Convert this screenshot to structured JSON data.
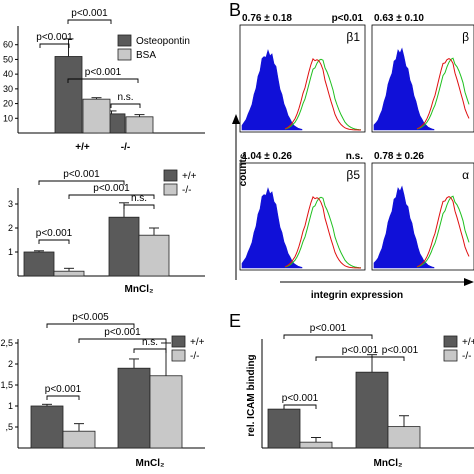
{
  "colors": {
    "dark": "#5a5a5a",
    "light": "#c8c8c8",
    "fill_blue": "#1010d8",
    "line_red": "#e01010",
    "line_green": "#20c020"
  },
  "panel_letters": {
    "B": "B",
    "E": "E"
  },
  "chart_data": [
    {
      "id": "top-left",
      "type": "bar",
      "categories": [
        "+/+",
        "-/-"
      ],
      "series": [
        {
          "name": "Osteopontin",
          "values": [
            52,
            13
          ],
          "errors": [
            12,
            2
          ]
        },
        {
          "name": "BSA",
          "values": [
            23,
            11
          ],
          "errors": [
            1,
            1.5
          ]
        }
      ],
      "ylim": [
        0,
        70
      ],
      "yticks": [
        10,
        20,
        30,
        40,
        50,
        60
      ],
      "ytick_labels": [
        "10",
        "20",
        "30",
        "40",
        "50",
        "60"
      ],
      "xlabel": "",
      "ylabel": "",
      "legend": "top-right",
      "annotations": [
        {
          "text": "p<0.001",
          "from": "+/+ Osteopontin",
          "to": "-/- Osteopontin"
        },
        {
          "text": "p<0.001",
          "from": "+/+ Osteopontin",
          "to": "+/+ BSA"
        },
        {
          "text": "p<0.001",
          "from": "+/+ BSA",
          "to": "-/- BSA"
        },
        {
          "text": "n.s.",
          "from": "-/- Osteopontin",
          "to": "-/- BSA"
        }
      ]
    },
    {
      "id": "middle-left",
      "type": "bar",
      "categories": [
        "",
        "MnCl2"
      ],
      "category_labels": [
        "",
        "MnCl₂"
      ],
      "series": [
        {
          "name": "+/+",
          "values": [
            1.0,
            2.45
          ],
          "errors": [
            0.05,
            0.6
          ]
        },
        {
          "name": "-/-",
          "values": [
            0.2,
            1.7
          ],
          "errors": [
            0.12,
            0.3
          ]
        }
      ],
      "ylim": [
        0,
        3.5
      ],
      "yticks": [
        1,
        2,
        3
      ],
      "ytick_labels": [
        "1",
        "2",
        "3"
      ],
      "xlabel": "",
      "ylabel": "",
      "legend": "top-right",
      "annotations": [
        {
          "text": "p<0.001",
          "from": "ctrl +/+",
          "to": "MnCl2 +/+"
        },
        {
          "text": "p<0.001",
          "from": "ctrl -/-",
          "to": "MnCl2 -/-"
        },
        {
          "text": "n.s.",
          "from": "MnCl2 +/+",
          "to": "MnCl2 -/-"
        },
        {
          "text": "p<0.001",
          "from": "ctrl +/+",
          "to": "ctrl -/-"
        }
      ]
    },
    {
      "id": "bottom-left",
      "type": "bar",
      "categories": [
        "",
        "MnCl2"
      ],
      "category_labels": [
        "",
        "MnCl₂"
      ],
      "series": [
        {
          "name": "+/+",
          "values": [
            1.0,
            1.9
          ],
          "errors": [
            0.04,
            0.22
          ]
        },
        {
          "name": "-/-",
          "values": [
            0.4,
            1.72
          ],
          "errors": [
            0.18,
            0.78
          ]
        }
      ],
      "ylim": [
        0,
        2.5
      ],
      "yticks": [
        0.5,
        1,
        1.5,
        2,
        2.5
      ],
      "ytick_labels": [
        ",5",
        "1",
        "1,5",
        "2",
        "2,5"
      ],
      "xlabel": "",
      "ylabel": "",
      "legend": "top-right",
      "annotations": [
        {
          "text": "p<0.005",
          "from": "ctrl +/+",
          "to": "MnCl2 +/+"
        },
        {
          "text": "p<0.001",
          "from": "ctrl -/-",
          "to": "MnCl2 -/-"
        },
        {
          "text": "n.s.",
          "from": "MnCl2 +/+",
          "to": "MnCl2 -/-"
        },
        {
          "text": "p<0.001",
          "from": "ctrl +/+",
          "to": "ctrl -/-"
        }
      ]
    },
    {
      "id": "bottom-right",
      "type": "bar",
      "categories": [
        "",
        "MnCl2"
      ],
      "category_labels": [
        "",
        "MnCl₂"
      ],
      "series": [
        {
          "name": "+/+",
          "values": [
            1.0,
            1.95
          ],
          "errors": [
            0.0,
            0.45
          ]
        },
        {
          "name": "-/-",
          "values": [
            0.15,
            0.55
          ],
          "errors": [
            0.12,
            0.28
          ]
        }
      ],
      "ylim": [
        0,
        2.7
      ],
      "yticks": [],
      "ytick_labels": [],
      "xlabel": "",
      "ylabel": "rel. ICAM binding",
      "legend": "top-right",
      "annotations": [
        {
          "text": "p<0.001",
          "from": "ctrl +/+",
          "to": "MnCl2 +/+"
        },
        {
          "text": "p<0.001",
          "from": "ctrl -/-",
          "to": "MnCl2 -/-"
        },
        {
          "text": "p<0.001",
          "from": "MnCl2 +/+",
          "to": "MnCl2 -/-"
        },
        {
          "text": "p<0.001",
          "from": "ctrl +/+",
          "to": "ctrl -/-"
        }
      ]
    },
    {
      "id": "histograms",
      "type": "area",
      "ylabel": "counts",
      "xlabel": "integrin expression",
      "panels": [
        {
          "name": "β1",
          "ratio": "0.76 ± 0.18",
          "p": "p<0.01"
        },
        {
          "name": "β",
          "ratio": "0.63 ± 0.10",
          "p": ""
        },
        {
          "name": "β5",
          "ratio": "1.04 ± 0.26",
          "p": "n.s."
        },
        {
          "name": "α",
          "ratio": "0.78 ± 0.26",
          "p": ""
        }
      ]
    }
  ]
}
